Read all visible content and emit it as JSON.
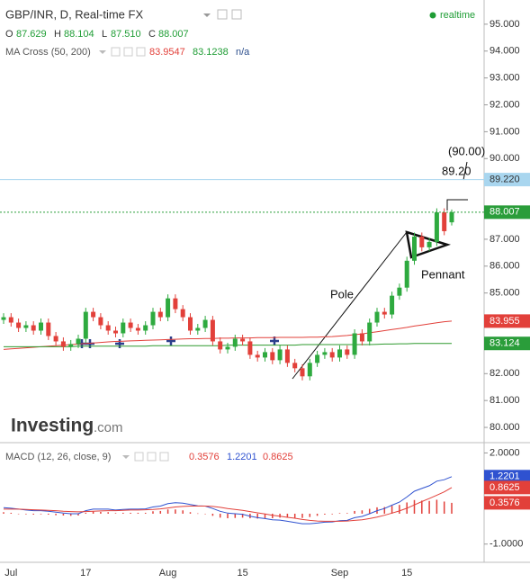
{
  "header": {
    "symbol": "GBP/INR, D, Real-time FX",
    "status": "realtime",
    "ohlc": [
      {
        "label": "O",
        "value": "87.629"
      },
      {
        "label": "H",
        "value": "88.104"
      },
      {
        "label": "L",
        "value": "87.510"
      },
      {
        "label": "C",
        "value": "88.007"
      }
    ],
    "indicator": "MA Cross (50, 200)",
    "indicator_values": [
      "83.9547",
      "83.1238",
      "n/a"
    ],
    "logo": "Investing",
    "logo_suffix": ".com"
  },
  "annotations": {
    "target": "(90.00)",
    "level": "89.20",
    "pole": "Pole",
    "pennant": "Pennant"
  },
  "chart_data": [
    {
      "type": "candlestick",
      "categories": [
        null,
        "Jul",
        null,
        null,
        null,
        null,
        null,
        null,
        null,
        null,
        null,
        "17",
        null,
        null,
        null,
        null,
        null,
        null,
        null,
        null,
        null,
        null,
        "Aug",
        null,
        null,
        null,
        null,
        null,
        null,
        null,
        null,
        null,
        "15",
        null,
        null,
        null,
        null,
        null,
        null,
        null,
        null,
        null,
        null,
        null,
        null,
        "Sep",
        null,
        null,
        null,
        null,
        null,
        null,
        null,
        null,
        "15",
        null,
        null,
        null,
        null,
        null,
        null
      ],
      "open": [
        84.0,
        84.1,
        83.9,
        83.7,
        83.8,
        83.6,
        83.9,
        83.4,
        83.2,
        83.0,
        83.1,
        83.3,
        84.3,
        84.1,
        83.8,
        83.6,
        83.5,
        83.9,
        83.7,
        83.6,
        83.8,
        84.3,
        84.1,
        84.8,
        84.4,
        84.1,
        83.6,
        83.7,
        84.0,
        83.2,
        82.9,
        83.0,
        83.3,
        83.2,
        82.7,
        82.6,
        82.8,
        82.5,
        82.9,
        82.4,
        82.2,
        81.9,
        82.4,
        82.7,
        82.8,
        82.6,
        82.9,
        82.7,
        83.5,
        83.2,
        83.9,
        84.3,
        84.2,
        84.9,
        85.2,
        86.2,
        87.1,
        86.7,
        86.9,
        88.0,
        87.629
      ],
      "high": [
        84.25,
        84.25,
        84.05,
        83.95,
        83.95,
        84.05,
        84.05,
        83.55,
        83.35,
        83.25,
        83.45,
        84.45,
        84.45,
        84.25,
        83.95,
        83.75,
        84.05,
        84.05,
        83.85,
        83.95,
        84.45,
        84.45,
        84.95,
        84.95,
        84.55,
        84.25,
        83.85,
        84.15,
        84.15,
        83.35,
        83.15,
        83.45,
        83.45,
        83.35,
        82.85,
        82.95,
        82.95,
        83.05,
        83.05,
        82.55,
        82.35,
        82.55,
        82.85,
        82.95,
        82.95,
        83.05,
        83.05,
        83.65,
        83.65,
        84.05,
        84.45,
        84.45,
        85.05,
        85.35,
        86.35,
        87.25,
        87.25,
        87.05,
        88.15,
        88.15,
        88.104
      ],
      "low": [
        83.85,
        83.75,
        83.55,
        83.55,
        83.45,
        83.45,
        83.25,
        83.05,
        82.85,
        82.85,
        82.95,
        83.15,
        83.95,
        83.65,
        83.45,
        83.35,
        83.35,
        83.55,
        83.45,
        83.45,
        83.65,
        83.95,
        83.95,
        84.25,
        83.95,
        83.45,
        83.45,
        83.55,
        83.05,
        82.75,
        82.75,
        82.85,
        83.05,
        82.55,
        82.45,
        82.45,
        82.35,
        82.35,
        82.25,
        82.05,
        81.75,
        81.75,
        82.25,
        82.55,
        82.45,
        82.45,
        82.55,
        82.55,
        83.05,
        83.05,
        83.75,
        84.05,
        84.05,
        84.75,
        85.05,
        86.05,
        86.55,
        86.55,
        86.75,
        87.15,
        87.51
      ],
      "close": [
        84.1,
        83.9,
        83.7,
        83.8,
        83.6,
        83.9,
        83.4,
        83.2,
        83.0,
        83.1,
        83.3,
        84.3,
        84.1,
        83.8,
        83.6,
        83.5,
        83.9,
        83.7,
        83.6,
        83.8,
        84.3,
        84.1,
        84.8,
        84.4,
        84.1,
        83.6,
        83.7,
        84.0,
        83.2,
        82.9,
        83.0,
        83.3,
        83.2,
        82.7,
        82.6,
        82.8,
        82.5,
        82.9,
        82.4,
        82.2,
        81.9,
        82.4,
        82.7,
        82.8,
        82.6,
        82.9,
        82.7,
        83.5,
        83.2,
        83.9,
        84.3,
        84.2,
        84.9,
        85.2,
        86.2,
        87.1,
        86.7,
        86.9,
        88.0,
        87.3,
        88.007
      ],
      "up_color": "#2eaa3f",
      "down_color": "#e2403a",
      "series": [
        {
          "color": "#e2403a",
          "values": [
            82.9,
            82.92,
            82.94,
            82.96,
            82.98,
            83.0,
            83.02,
            83.04,
            83.06,
            83.08,
            83.1,
            83.12,
            83.14,
            83.16,
            83.18,
            83.2,
            83.21,
            83.22,
            83.23,
            83.24,
            83.25,
            83.26,
            83.27,
            83.28,
            83.29,
            83.3,
            83.3,
            83.31,
            83.31,
            83.32,
            83.32,
            83.33,
            83.33,
            83.33,
            83.34,
            83.34,
            83.34,
            83.35,
            83.35,
            83.35,
            83.35,
            83.36,
            83.36,
            83.37,
            83.38,
            83.4,
            83.42,
            83.45,
            83.48,
            83.52,
            83.56,
            83.6,
            83.64,
            83.68,
            83.72,
            83.77,
            83.81,
            83.85,
            83.89,
            83.93,
            83.955
          ]
        },
        {
          "color": "#2e9a2e",
          "values": [
            83.0,
            83.0,
            83.0,
            83.0,
            83.0,
            83.0,
            83.0,
            83.0,
            83.0,
            83.0,
            83.02,
            83.02,
            83.02,
            83.02,
            83.02,
            83.02,
            83.02,
            83.02,
            83.02,
            83.02,
            83.04,
            83.04,
            83.04,
            83.04,
            83.04,
            83.04,
            83.04,
            83.04,
            83.04,
            83.04,
            83.06,
            83.06,
            83.06,
            83.06,
            83.06,
            83.06,
            83.06,
            83.06,
            83.06,
            83.06,
            83.08,
            83.08,
            83.08,
            83.08,
            83.08,
            83.08,
            83.08,
            83.08,
            83.08,
            83.08,
            83.09,
            83.1,
            83.1,
            83.11,
            83.11,
            83.12,
            83.12,
            83.12,
            83.12,
            83.12,
            83.124
          ]
        }
      ],
      "ylim": [
        79.5,
        95.9
      ],
      "yticks": [
        {
          "value": 95,
          "label": "95.000"
        },
        {
          "value": 94,
          "label": "94.000"
        },
        {
          "value": 93,
          "label": "93.000"
        },
        {
          "value": 92,
          "label": "92.000"
        },
        {
          "value": 91,
          "label": "91.000"
        },
        {
          "value": 90,
          "label": "90.000"
        },
        {
          "value": 87,
          "label": "87.000"
        },
        {
          "value": 86,
          "label": "86.000"
        },
        {
          "value": 85,
          "label": "85.000"
        },
        {
          "value": 82,
          "label": "82.000"
        },
        {
          "value": 81,
          "label": "81.000"
        },
        {
          "value": 80,
          "label": "80.000"
        }
      ],
      "grid": false,
      "price_labels": [
        {
          "value": 89.22,
          "label": "89.220",
          "color": "#a9d6ef",
          "text_color": "#333333",
          "line": "solid"
        },
        {
          "value": 88.007,
          "color": "#2a9d3a",
          "text_color": "#ffffff",
          "line": "dotted"
        },
        {
          "value": 83.955,
          "color": "#e2403a",
          "text_color": "#ffffff"
        },
        {
          "value": 83.124,
          "color": "#2a9d3a",
          "text_color": "#ffffff"
        }
      ]
    },
    {
      "type": "macd",
      "title": "MACD (12, 26, close, 9)",
      "legend_values": [
        {
          "text": "0.3576",
          "color": "#e2403a"
        },
        {
          "text": "1.2201",
          "color": "#2f52d0"
        },
        {
          "text": "0.8625",
          "color": "#e2403a"
        }
      ],
      "histogram": {
        "color": "#e2403a",
        "values": [
          0.05,
          0.03,
          0.0,
          -0.02,
          -0.03,
          -0.02,
          -0.03,
          -0.05,
          -0.06,
          -0.07,
          -0.06,
          0.03,
          0.07,
          0.06,
          0.05,
          0.02,
          0.03,
          0.03,
          0.03,
          0.03,
          0.08,
          0.09,
          0.14,
          0.14,
          0.11,
          0.05,
          0.01,
          0.0,
          -0.07,
          -0.13,
          -0.15,
          -0.14,
          -0.13,
          -0.15,
          -0.16,
          -0.15,
          -0.15,
          -0.13,
          -0.13,
          -0.14,
          -0.14,
          -0.11,
          -0.07,
          -0.03,
          -0.02,
          0.02,
          0.02,
          0.09,
          0.11,
          0.16,
          0.21,
          0.22,
          0.26,
          0.29,
          0.37,
          0.45,
          0.43,
          0.42,
          0.46,
          0.4,
          0.3576
        ]
      },
      "series": [
        {
          "color": "#2f52d0",
          "values": [
            0.2,
            0.18,
            0.15,
            0.12,
            0.1,
            0.1,
            0.08,
            0.05,
            0.02,
            0.0,
            0.0,
            0.1,
            0.15,
            0.15,
            0.15,
            0.12,
            0.14,
            0.15,
            0.15,
            0.16,
            0.22,
            0.25,
            0.33,
            0.36,
            0.35,
            0.3,
            0.26,
            0.25,
            0.17,
            0.08,
            0.02,
            0.0,
            -0.02,
            -0.08,
            -0.13,
            -0.16,
            -0.2,
            -0.21,
            -0.25,
            -0.29,
            -0.33,
            -0.33,
            -0.31,
            -0.28,
            -0.27,
            -0.23,
            -0.22,
            -0.13,
            -0.09,
            0.0,
            0.1,
            0.17,
            0.28,
            0.38,
            0.55,
            0.74,
            0.83,
            0.92,
            1.07,
            1.12,
            1.2201
          ]
        },
        {
          "color": "#e2403a",
          "values": [
            0.15,
            0.15,
            0.15,
            0.14,
            0.13,
            0.12,
            0.11,
            0.1,
            0.08,
            0.07,
            0.06,
            0.07,
            0.08,
            0.09,
            0.1,
            0.1,
            0.11,
            0.12,
            0.12,
            0.13,
            0.14,
            0.16,
            0.19,
            0.22,
            0.24,
            0.25,
            0.25,
            0.25,
            0.24,
            0.21,
            0.17,
            0.14,
            0.11,
            0.07,
            0.03,
            -0.01,
            -0.05,
            -0.08,
            -0.12,
            -0.15,
            -0.19,
            -0.22,
            -0.24,
            -0.25,
            -0.25,
            -0.25,
            -0.24,
            -0.22,
            -0.2,
            -0.16,
            -0.11,
            -0.05,
            0.02,
            0.09,
            0.18,
            0.29,
            0.4,
            0.5,
            0.61,
            0.72,
            0.8625
          ]
        }
      ],
      "ylim": [
        -1.6,
        2.25
      ],
      "yticks": [
        {
          "value": 2,
          "label": "2.0000"
        },
        {
          "value": -1,
          "label": "-1.0000"
        }
      ],
      "grid": false,
      "price_labels": [
        {
          "value": 1.2201,
          "color": "#2f52d0",
          "text_color": "#ffffff"
        },
        {
          "value": 0.8625,
          "color": "#e2403a",
          "text_color": "#ffffff"
        },
        {
          "value": 0.3576,
          "color": "#e2403a",
          "text_color": "#ffffff"
        }
      ]
    }
  ]
}
